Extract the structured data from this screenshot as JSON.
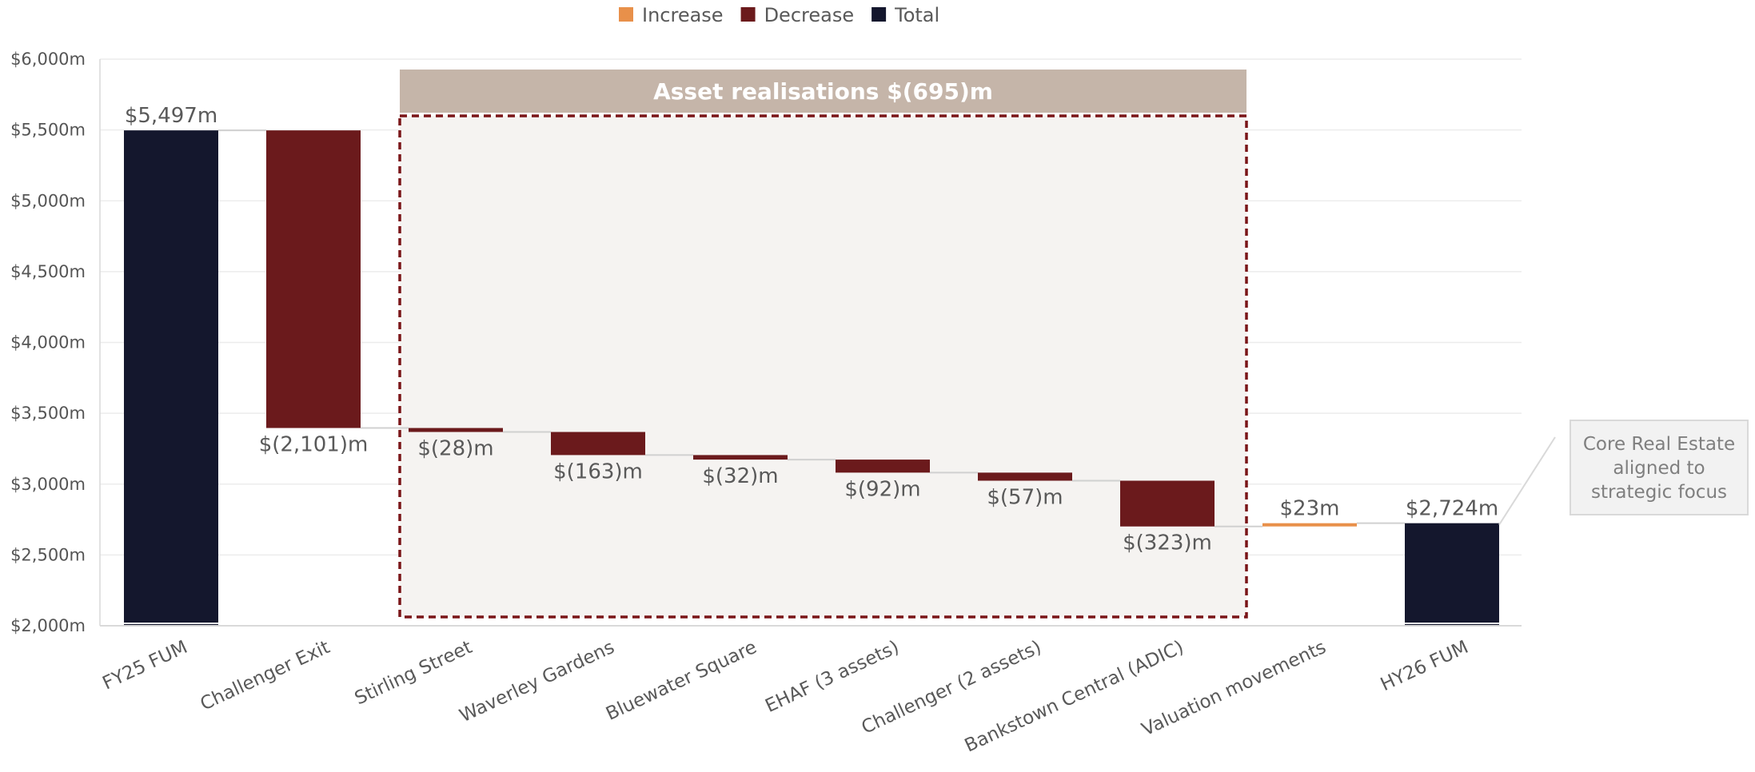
{
  "chart_data": {
    "type": "waterfall",
    "categories": [
      "FY25 FUM",
      "Challenger Exit",
      "Stirling Street",
      "Waverley Gardens",
      "Bluewater Square",
      "EHAF (3 assets)",
      "Challenger (2 assets)",
      "Bankstown Central (ADIC)",
      "Valuation movements",
      "HY26 FUM"
    ],
    "values": [
      5497,
      -2101,
      -28,
      -163,
      -32,
      -92,
      -57,
      -323,
      23,
      2724
    ],
    "kinds": [
      "total",
      "decrease",
      "decrease",
      "decrease",
      "decrease",
      "decrease",
      "decrease",
      "decrease",
      "increase",
      "total"
    ],
    "data_labels": [
      "$5,497m",
      "$(2,101)m",
      "$(28)m",
      "$(163)m",
      "$(32)m",
      "$(92)m",
      "$(57)m",
      "$(323)m",
      "$23m",
      "$2,724m"
    ],
    "ylim": [
      2000,
      6000
    ],
    "yticks": [
      2000,
      2500,
      3000,
      3500,
      4000,
      4500,
      5000,
      5500,
      6000
    ],
    "ytick_labels": [
      "$2,000m",
      "$2,500m",
      "$3,000m",
      "$3,500m",
      "$4,000m",
      "$4,500m",
      "$5,000m",
      "$5,500m",
      "$6,000m"
    ],
    "grid": true,
    "legend": {
      "placement": "top-center",
      "entries": [
        {
          "label": "Increase",
          "color": "#e8904a"
        },
        {
          "label": "Decrease",
          "color": "#6b1a1c"
        },
        {
          "label": "Total",
          "color": "#14172d"
        }
      ]
    },
    "annotations": {
      "group_banner": "Asset realisations $(695)m",
      "group_range": [
        2,
        7
      ],
      "callout": [
        "Core Real Estate",
        "aligned to",
        "strategic focus"
      ]
    },
    "colors": {
      "increase": "#e8904a",
      "decrease": "#6b1a1c",
      "total": "#14172d",
      "banner": "#c5b5a9",
      "group_fill": "#f5f3f1",
      "group_border": "#7a1518"
    }
  }
}
